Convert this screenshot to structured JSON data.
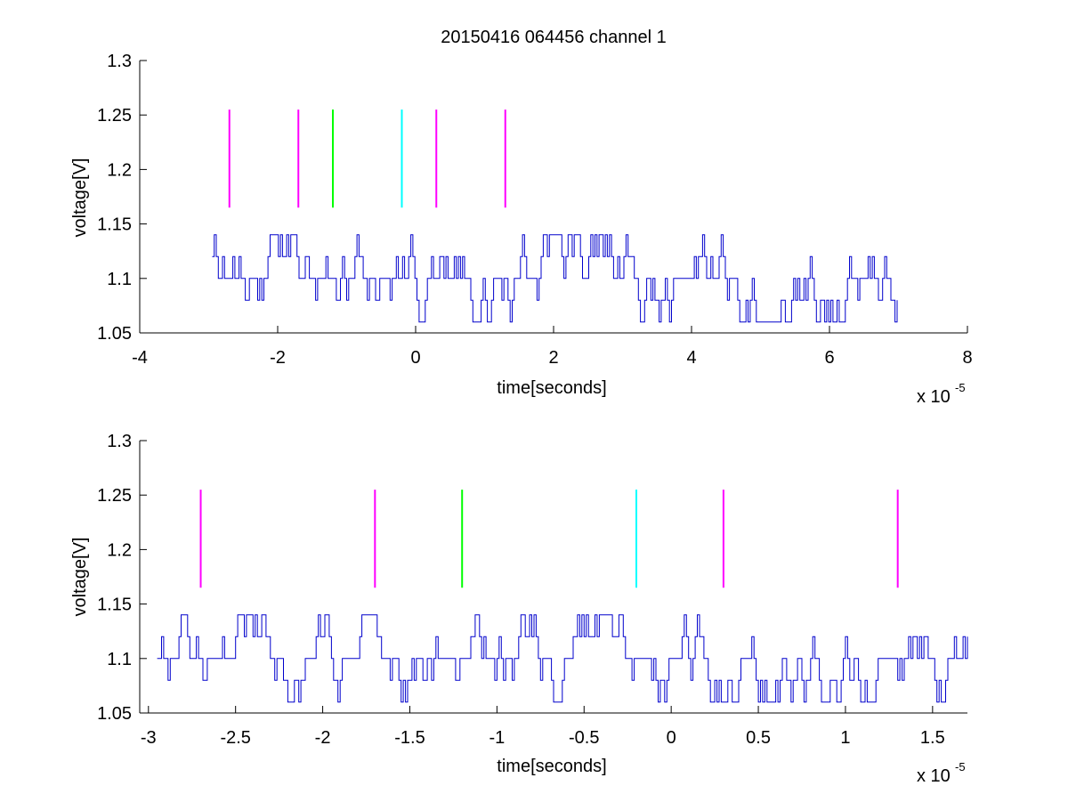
{
  "chart_data": [
    {
      "type": "line",
      "title": "20150416 064456 channel 1",
      "xlabel": "time[seconds]",
      "ylabel": "voltage[V]",
      "x_multiplier": "x 10",
      "x_exponent": "-5",
      "xlim": [
        -4,
        8
      ],
      "ylim": [
        1.05,
        1.3
      ],
      "xticks": [
        -4,
        -2,
        0,
        2,
        4,
        6,
        8
      ],
      "xtick_labels": [
        "-4",
        "-2",
        "0",
        "2",
        "4",
        "6",
        "8"
      ],
      "yticks": [
        1.05,
        1.1,
        1.15,
        1.2,
        1.25,
        1.3
      ],
      "ytick_labels": [
        "1.05",
        "1.1",
        "1.15",
        "1.2",
        "1.25",
        "1.3"
      ],
      "grid": false,
      "signal": {
        "color": "#0000cc",
        "x_start": -2.95,
        "x_end": 7.0,
        "levels": [
          1.06,
          1.08,
          1.1,
          1.12,
          1.14
        ],
        "baseline": 1.1
      },
      "markers": [
        {
          "x": -2.7,
          "y_bottom": 1.165,
          "y_top": 1.255,
          "color": "#ff00ff"
        },
        {
          "x": -1.7,
          "y_bottom": 1.165,
          "y_top": 1.255,
          "color": "#ff00ff"
        },
        {
          "x": -1.2,
          "y_bottom": 1.165,
          "y_top": 1.255,
          "color": "#00ff00"
        },
        {
          "x": -0.2,
          "y_bottom": 1.165,
          "y_top": 1.255,
          "color": "#00ffff"
        },
        {
          "x": 0.3,
          "y_bottom": 1.165,
          "y_top": 1.255,
          "color": "#ff00ff"
        },
        {
          "x": 1.3,
          "y_bottom": 1.165,
          "y_top": 1.255,
          "color": "#ff00ff"
        }
      ]
    },
    {
      "type": "line",
      "title": "",
      "xlabel": "time[seconds]",
      "ylabel": "voltage[V]",
      "x_multiplier": "x 10",
      "x_exponent": "-5",
      "xlim": [
        -3.05,
        1.7
      ],
      "ylim": [
        1.05,
        1.3
      ],
      "xticks": [
        -3,
        -2.5,
        -2,
        -1.5,
        -1,
        -0.5,
        0,
        0.5,
        1,
        1.5
      ],
      "xtick_labels": [
        "-3",
        "-2.5",
        "-2",
        "-1.5",
        "-1",
        "-0.5",
        "0",
        "0.5",
        "1",
        "1.5"
      ],
      "yticks": [
        1.05,
        1.1,
        1.15,
        1.2,
        1.25,
        1.3
      ],
      "ytick_labels": [
        "1.05",
        "1.1",
        "1.15",
        "1.2",
        "1.25",
        "1.3"
      ],
      "grid": false,
      "signal": {
        "color": "#0000cc",
        "x_start": -2.95,
        "x_end": 1.7,
        "levels": [
          1.06,
          1.08,
          1.1,
          1.12,
          1.14
        ],
        "baseline": 1.1
      },
      "markers": [
        {
          "x": -2.7,
          "y_bottom": 1.165,
          "y_top": 1.255,
          "color": "#ff00ff"
        },
        {
          "x": -1.7,
          "y_bottom": 1.165,
          "y_top": 1.255,
          "color": "#ff00ff"
        },
        {
          "x": -1.2,
          "y_bottom": 1.165,
          "y_top": 1.255,
          "color": "#00ff00"
        },
        {
          "x": -0.2,
          "y_bottom": 1.165,
          "y_top": 1.255,
          "color": "#00ffff"
        },
        {
          "x": 0.3,
          "y_bottom": 1.165,
          "y_top": 1.255,
          "color": "#ff00ff"
        },
        {
          "x": 1.3,
          "y_bottom": 1.165,
          "y_top": 1.255,
          "color": "#ff00ff"
        }
      ]
    }
  ]
}
